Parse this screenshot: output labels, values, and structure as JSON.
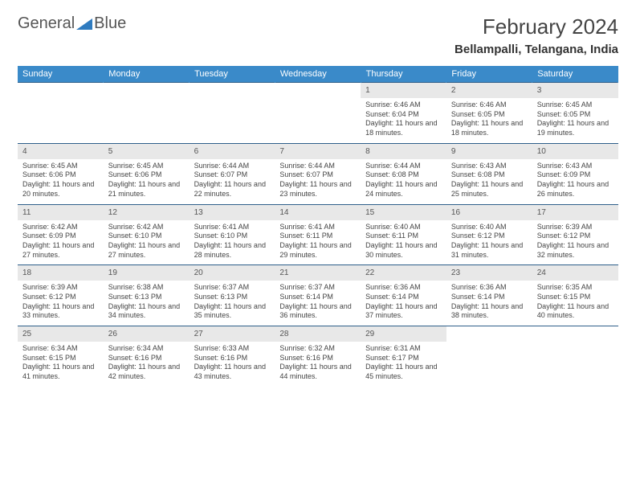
{
  "logo": {
    "text1": "General",
    "text2": "Blue"
  },
  "title": "February 2024",
  "location": "Bellampalli, Telangana, India",
  "colors": {
    "header_bg": "#3a8ac9",
    "header_text": "#ffffff",
    "daynum_bg": "#e8e8e8",
    "row_border": "#2f5f8a",
    "logo_blue": "#2f7bbf"
  },
  "days_of_week": [
    "Sunday",
    "Monday",
    "Tuesday",
    "Wednesday",
    "Thursday",
    "Friday",
    "Saturday"
  ],
  "weeks": [
    [
      {
        "num": "",
        "sunrise": "",
        "sunset": "",
        "daylight": ""
      },
      {
        "num": "",
        "sunrise": "",
        "sunset": "",
        "daylight": ""
      },
      {
        "num": "",
        "sunrise": "",
        "sunset": "",
        "daylight": ""
      },
      {
        "num": "",
        "sunrise": "",
        "sunset": "",
        "daylight": ""
      },
      {
        "num": "1",
        "sunrise": "Sunrise: 6:46 AM",
        "sunset": "Sunset: 6:04 PM",
        "daylight": "Daylight: 11 hours and 18 minutes."
      },
      {
        "num": "2",
        "sunrise": "Sunrise: 6:46 AM",
        "sunset": "Sunset: 6:05 PM",
        "daylight": "Daylight: 11 hours and 18 minutes."
      },
      {
        "num": "3",
        "sunrise": "Sunrise: 6:45 AM",
        "sunset": "Sunset: 6:05 PM",
        "daylight": "Daylight: 11 hours and 19 minutes."
      }
    ],
    [
      {
        "num": "4",
        "sunrise": "Sunrise: 6:45 AM",
        "sunset": "Sunset: 6:06 PM",
        "daylight": "Daylight: 11 hours and 20 minutes."
      },
      {
        "num": "5",
        "sunrise": "Sunrise: 6:45 AM",
        "sunset": "Sunset: 6:06 PM",
        "daylight": "Daylight: 11 hours and 21 minutes."
      },
      {
        "num": "6",
        "sunrise": "Sunrise: 6:44 AM",
        "sunset": "Sunset: 6:07 PM",
        "daylight": "Daylight: 11 hours and 22 minutes."
      },
      {
        "num": "7",
        "sunrise": "Sunrise: 6:44 AM",
        "sunset": "Sunset: 6:07 PM",
        "daylight": "Daylight: 11 hours and 23 minutes."
      },
      {
        "num": "8",
        "sunrise": "Sunrise: 6:44 AM",
        "sunset": "Sunset: 6:08 PM",
        "daylight": "Daylight: 11 hours and 24 minutes."
      },
      {
        "num": "9",
        "sunrise": "Sunrise: 6:43 AM",
        "sunset": "Sunset: 6:08 PM",
        "daylight": "Daylight: 11 hours and 25 minutes."
      },
      {
        "num": "10",
        "sunrise": "Sunrise: 6:43 AM",
        "sunset": "Sunset: 6:09 PM",
        "daylight": "Daylight: 11 hours and 26 minutes."
      }
    ],
    [
      {
        "num": "11",
        "sunrise": "Sunrise: 6:42 AM",
        "sunset": "Sunset: 6:09 PM",
        "daylight": "Daylight: 11 hours and 27 minutes."
      },
      {
        "num": "12",
        "sunrise": "Sunrise: 6:42 AM",
        "sunset": "Sunset: 6:10 PM",
        "daylight": "Daylight: 11 hours and 27 minutes."
      },
      {
        "num": "13",
        "sunrise": "Sunrise: 6:41 AM",
        "sunset": "Sunset: 6:10 PM",
        "daylight": "Daylight: 11 hours and 28 minutes."
      },
      {
        "num": "14",
        "sunrise": "Sunrise: 6:41 AM",
        "sunset": "Sunset: 6:11 PM",
        "daylight": "Daylight: 11 hours and 29 minutes."
      },
      {
        "num": "15",
        "sunrise": "Sunrise: 6:40 AM",
        "sunset": "Sunset: 6:11 PM",
        "daylight": "Daylight: 11 hours and 30 minutes."
      },
      {
        "num": "16",
        "sunrise": "Sunrise: 6:40 AM",
        "sunset": "Sunset: 6:12 PM",
        "daylight": "Daylight: 11 hours and 31 minutes."
      },
      {
        "num": "17",
        "sunrise": "Sunrise: 6:39 AM",
        "sunset": "Sunset: 6:12 PM",
        "daylight": "Daylight: 11 hours and 32 minutes."
      }
    ],
    [
      {
        "num": "18",
        "sunrise": "Sunrise: 6:39 AM",
        "sunset": "Sunset: 6:12 PM",
        "daylight": "Daylight: 11 hours and 33 minutes."
      },
      {
        "num": "19",
        "sunrise": "Sunrise: 6:38 AM",
        "sunset": "Sunset: 6:13 PM",
        "daylight": "Daylight: 11 hours and 34 minutes."
      },
      {
        "num": "20",
        "sunrise": "Sunrise: 6:37 AM",
        "sunset": "Sunset: 6:13 PM",
        "daylight": "Daylight: 11 hours and 35 minutes."
      },
      {
        "num": "21",
        "sunrise": "Sunrise: 6:37 AM",
        "sunset": "Sunset: 6:14 PM",
        "daylight": "Daylight: 11 hours and 36 minutes."
      },
      {
        "num": "22",
        "sunrise": "Sunrise: 6:36 AM",
        "sunset": "Sunset: 6:14 PM",
        "daylight": "Daylight: 11 hours and 37 minutes."
      },
      {
        "num": "23",
        "sunrise": "Sunrise: 6:36 AM",
        "sunset": "Sunset: 6:14 PM",
        "daylight": "Daylight: 11 hours and 38 minutes."
      },
      {
        "num": "24",
        "sunrise": "Sunrise: 6:35 AM",
        "sunset": "Sunset: 6:15 PM",
        "daylight": "Daylight: 11 hours and 40 minutes."
      }
    ],
    [
      {
        "num": "25",
        "sunrise": "Sunrise: 6:34 AM",
        "sunset": "Sunset: 6:15 PM",
        "daylight": "Daylight: 11 hours and 41 minutes."
      },
      {
        "num": "26",
        "sunrise": "Sunrise: 6:34 AM",
        "sunset": "Sunset: 6:16 PM",
        "daylight": "Daylight: 11 hours and 42 minutes."
      },
      {
        "num": "27",
        "sunrise": "Sunrise: 6:33 AM",
        "sunset": "Sunset: 6:16 PM",
        "daylight": "Daylight: 11 hours and 43 minutes."
      },
      {
        "num": "28",
        "sunrise": "Sunrise: 6:32 AM",
        "sunset": "Sunset: 6:16 PM",
        "daylight": "Daylight: 11 hours and 44 minutes."
      },
      {
        "num": "29",
        "sunrise": "Sunrise: 6:31 AM",
        "sunset": "Sunset: 6:17 PM",
        "daylight": "Daylight: 11 hours and 45 minutes."
      },
      {
        "num": "",
        "sunrise": "",
        "sunset": "",
        "daylight": ""
      },
      {
        "num": "",
        "sunrise": "",
        "sunset": "",
        "daylight": ""
      }
    ]
  ]
}
